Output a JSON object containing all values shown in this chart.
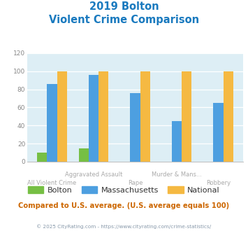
{
  "title_line1": "2019 Bolton",
  "title_line2": "Violent Crime Comparison",
  "categories": [
    "All Violent Crime",
    "Aggravated Assault",
    "Rape",
    "Murder & Mans...",
    "Robbery"
  ],
  "bolton": [
    10,
    15,
    0,
    0,
    0
  ],
  "massachusetts": [
    86,
    96,
    76,
    45,
    65
  ],
  "national": [
    100,
    100,
    100,
    100,
    100
  ],
  "bolton_color": "#76bf44",
  "massachusetts_color": "#4d9fe0",
  "national_color": "#f5b942",
  "ylim": [
    0,
    120
  ],
  "yticks": [
    0,
    20,
    40,
    60,
    80,
    100,
    120
  ],
  "title_color": "#1a7abf",
  "bg_color": "#ddeef5",
  "note_text": "Compared to U.S. average. (U.S. average equals 100)",
  "note_color": "#cc6600",
  "footer_text": "© 2025 CityRating.com - https://www.cityrating.com/crime-statistics/",
  "footer_color": "#8899aa",
  "legend_labels": [
    "Bolton",
    "Massachusetts",
    "National"
  ],
  "top_xlabels": [
    "",
    "Aggravated Assault",
    "",
    "Murder & Mans...",
    ""
  ],
  "bottom_xlabels": [
    "All Violent Crime",
    "",
    "Rape",
    "",
    "Robbery"
  ]
}
